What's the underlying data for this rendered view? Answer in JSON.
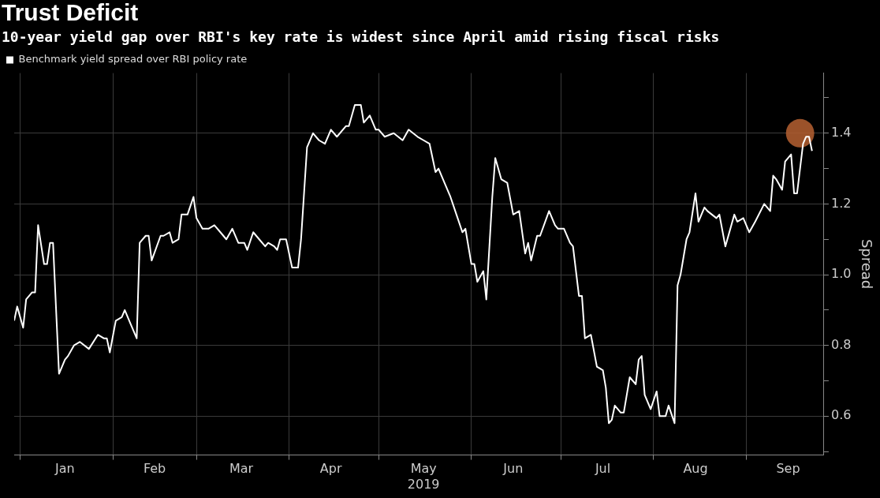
{
  "chart_data": {
    "type": "line",
    "title": "Trust Deficit",
    "subtitle": "10-year yield gap over RBI's key rate is widest since April amid rising fiscal risks",
    "ylabel": "Spread",
    "legend": "top left",
    "grid": true,
    "marker": "none",
    "line_style": "solid",
    "xlim": [
      "2018-12-30",
      "2019-09-27"
    ],
    "xticks": [
      {
        "value": "2019-01-01",
        "label": null
      },
      {
        "value": "2019-01-16",
        "label": "Jan"
      },
      {
        "value": "2019-02-01",
        "label": null
      },
      {
        "value": "2019-02-15",
        "label": "Feb"
      },
      {
        "value": "2019-03-01",
        "label": null
      },
      {
        "value": "2019-03-16",
        "label": "Mar"
      },
      {
        "value": "2019-04-01",
        "label": null
      },
      {
        "value": "2019-04-15",
        "label": "Apr"
      },
      {
        "value": "2019-05-01",
        "label": null
      },
      {
        "value": "2019-05-16",
        "label": "May\n2019"
      },
      {
        "value": "2019-06-01",
        "label": null
      },
      {
        "value": "2019-06-15",
        "label": "Jun"
      },
      {
        "value": "2019-07-01",
        "label": null
      },
      {
        "value": "2019-07-15",
        "label": "Jul"
      },
      {
        "value": "2019-08-01",
        "label": null
      },
      {
        "value": "2019-08-15",
        "label": "Aug"
      },
      {
        "value": "2019-09-01",
        "label": null
      },
      {
        "value": "2019-09-15",
        "label": "Sep"
      }
    ],
    "ylim": [
      0.49,
      1.57
    ],
    "yticks": [
      {
        "value": 0.5,
        "label": null
      },
      0.6,
      {
        "value": 0.7,
        "label": null
      },
      0.8,
      {
        "value": 0.9,
        "label": null
      },
      {
        "value": 1.0,
        "label": "1.0"
      },
      {
        "value": 1.1,
        "label": null
      },
      1.2,
      {
        "value": 1.3,
        "label": null
      },
      1.4,
      {
        "value": 1.5,
        "label": null
      }
    ],
    "series": [
      {
        "name": "Benchmark yield spread over RBI policy rate",
        "color": "#ffffff",
        "x": [
          "2018-12-30",
          "2018-12-31",
          "2019-01-02",
          "2019-01-03",
          "2019-01-05",
          "2019-01-06",
          "2019-01-07",
          "2019-01-09",
          "2019-01-10",
          "2019-01-11",
          "2019-01-12",
          "2019-01-14",
          "2019-01-16",
          "2019-01-17",
          "2019-01-19",
          "2019-01-21",
          "2019-01-24",
          "2019-01-27",
          "2019-01-29",
          "2019-01-30",
          "2019-01-31",
          "2019-02-02",
          "2019-02-04",
          "2019-02-05",
          "2019-02-07",
          "2019-02-09",
          "2019-02-10",
          "2019-02-12",
          "2019-02-13",
          "2019-02-14",
          "2019-02-17",
          "2019-02-18",
          "2019-02-20",
          "2019-02-21",
          "2019-02-23",
          "2019-02-24",
          "2019-02-25",
          "2019-02-26",
          "2019-02-28",
          "2019-03-01",
          "2019-03-03",
          "2019-03-05",
          "2019-03-07",
          "2019-03-09",
          "2019-03-11",
          "2019-03-13",
          "2019-03-15",
          "2019-03-17",
          "2019-03-18",
          "2019-03-20",
          "2019-03-22",
          "2019-03-24",
          "2019-03-25",
          "2019-03-27",
          "2019-03-28",
          "2019-03-29",
          "2019-03-31",
          "2019-04-02",
          "2019-04-04",
          "2019-04-05",
          "2019-04-07",
          "2019-04-09",
          "2019-04-11",
          "2019-04-13",
          "2019-04-15",
          "2019-04-17",
          "2019-04-20",
          "2019-04-21",
          "2019-04-23",
          "2019-04-25",
          "2019-04-26",
          "2019-04-28",
          "2019-04-30",
          "2019-05-01",
          "2019-05-03",
          "2019-05-06",
          "2019-05-09",
          "2019-05-11",
          "2019-05-14",
          "2019-05-16",
          "2019-05-18",
          "2019-05-20",
          "2019-05-21",
          "2019-05-23",
          "2019-05-25",
          "2019-05-27",
          "2019-05-29",
          "2019-05-30",
          "2019-06-01",
          "2019-06-02",
          "2019-06-03",
          "2019-06-05",
          "2019-06-06",
          "2019-06-08",
          "2019-06-09",
          "2019-06-11",
          "2019-06-13",
          "2019-06-15",
          "2019-06-17",
          "2019-06-19",
          "2019-06-20",
          "2019-06-21",
          "2019-06-23",
          "2019-06-24",
          "2019-06-27",
          "2019-06-29",
          "2019-06-30",
          "2019-07-02",
          "2019-07-04",
          "2019-07-05",
          "2019-07-07",
          "2019-07-08",
          "2019-07-09",
          "2019-07-11",
          "2019-07-13",
          "2019-07-15",
          "2019-07-16",
          "2019-07-17",
          "2019-07-18",
          "2019-07-19",
          "2019-07-21",
          "2019-07-22",
          "2019-07-24",
          "2019-07-26",
          "2019-07-27",
          "2019-07-28",
          "2019-07-29",
          "2019-07-31",
          "2019-08-02",
          "2019-08-03",
          "2019-08-05",
          "2019-08-06",
          "2019-08-08",
          "2019-08-09",
          "2019-08-10",
          "2019-08-12",
          "2019-08-13",
          "2019-08-15",
          "2019-08-16",
          "2019-08-18",
          "2019-08-19",
          "2019-08-22",
          "2019-08-23",
          "2019-08-25",
          "2019-08-28",
          "2019-08-29",
          "2019-08-31",
          "2019-09-02",
          "2019-09-04",
          "2019-09-07",
          "2019-09-09",
          "2019-09-10",
          "2019-09-11",
          "2019-09-13",
          "2019-09-14",
          "2019-09-16",
          "2019-09-17",
          "2019-09-18",
          "2019-09-20",
          "2019-09-21",
          "2019-09-22",
          "2019-09-23"
        ],
        "values": [
          0.87,
          0.91,
          0.85,
          0.93,
          0.95,
          0.95,
          1.14,
          1.03,
          1.03,
          1.09,
          1.09,
          0.72,
          0.76,
          0.77,
          0.8,
          0.81,
          0.79,
          0.83,
          0.82,
          0.82,
          0.78,
          0.87,
          0.88,
          0.9,
          0.86,
          0.82,
          1.09,
          1.11,
          1.11,
          1.04,
          1.11,
          1.11,
          1.12,
          1.09,
          1.1,
          1.17,
          1.17,
          1.17,
          1.22,
          1.16,
          1.13,
          1.13,
          1.14,
          1.12,
          1.1,
          1.13,
          1.09,
          1.09,
          1.07,
          1.12,
          1.1,
          1.08,
          1.09,
          1.08,
          1.07,
          1.1,
          1.1,
          1.02,
          1.02,
          1.1,
          1.36,
          1.4,
          1.38,
          1.37,
          1.41,
          1.39,
          1.42,
          1.42,
          1.48,
          1.48,
          1.43,
          1.45,
          1.41,
          1.41,
          1.39,
          1.4,
          1.38,
          1.41,
          1.39,
          1.38,
          1.37,
          1.29,
          1.3,
          1.26,
          1.22,
          1.17,
          1.12,
          1.13,
          1.03,
          1.03,
          0.98,
          1.01,
          0.93,
          1.22,
          1.33,
          1.27,
          1.26,
          1.17,
          1.18,
          1.06,
          1.09,
          1.04,
          1.11,
          1.11,
          1.18,
          1.14,
          1.13,
          1.13,
          1.09,
          1.08,
          0.94,
          0.94,
          0.82,
          0.83,
          0.74,
          0.73,
          0.68,
          0.58,
          0.59,
          0.63,
          0.61,
          0.61,
          0.71,
          0.69,
          0.76,
          0.77,
          0.66,
          0.62,
          0.67,
          0.6,
          0.6,
          0.63,
          0.58,
          0.97,
          1.0,
          1.1,
          1.12,
          1.23,
          1.15,
          1.19,
          1.18,
          1.16,
          1.17,
          1.08,
          1.17,
          1.15,
          1.16,
          1.12,
          1.15,
          1.2,
          1.18,
          1.28,
          1.27,
          1.24,
          1.32,
          1.34,
          1.23,
          1.23,
          1.37,
          1.39,
          1.39,
          1.35
        ]
      },
      {
        "type": "scatter",
        "marker": "circle",
        "color": "#b35f31",
        "x": [
          "2019-09-19"
        ],
        "values": [
          1.4
        ]
      }
    ]
  }
}
